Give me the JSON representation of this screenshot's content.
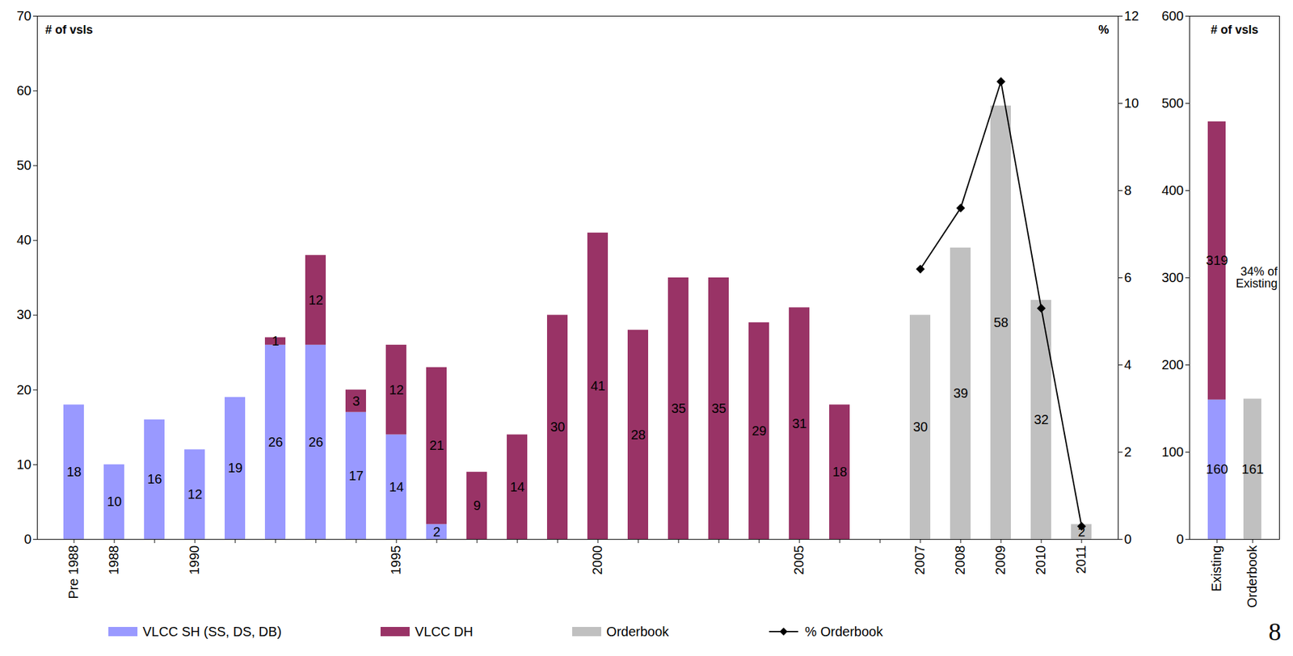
{
  "chart_data": [
    {
      "type": "bar",
      "stacked": true,
      "data_labels": true,
      "legend": "bottom",
      "y_label": "# of vsls",
      "y2_label": "%",
      "categories": [
        "Pre 1988",
        "1988",
        null,
        "1990",
        null,
        null,
        null,
        null,
        "1995",
        null,
        null,
        null,
        null,
        "2000",
        null,
        null,
        null,
        null,
        "2005",
        null,
        null,
        "2007",
        "2008",
        "2009",
        "2010",
        "2011"
      ],
      "series": [
        {
          "name": "VLCC SH (SS, DS, DB)",
          "color": "#9999ff",
          "values": [
            18,
            10,
            16,
            12,
            19,
            26,
            26,
            17,
            14,
            2,
            null,
            null,
            null,
            null,
            null,
            null,
            null,
            null,
            null,
            null,
            null,
            null,
            null,
            null,
            null,
            null
          ]
        },
        {
          "name": "VLCC DH",
          "color": "#993366",
          "values": [
            null,
            null,
            null,
            null,
            null,
            1,
            12,
            3,
            12,
            21,
            9,
            14,
            30,
            41,
            28,
            35,
            35,
            29,
            31,
            18,
            null,
            null,
            null,
            null,
            null,
            null
          ]
        },
        {
          "name": "Orderbook",
          "color": "#c0c0c0",
          "values": [
            null,
            null,
            null,
            null,
            null,
            null,
            null,
            null,
            null,
            null,
            null,
            null,
            null,
            null,
            null,
            null,
            null,
            null,
            null,
            null,
            null,
            30,
            39,
            58,
            32,
            2
          ]
        },
        {
          "name": "% Orderbook",
          "type": "line",
          "axis": "y2",
          "color": "#000000",
          "marker": "diamond",
          "data_labels": false,
          "values": [
            null,
            null,
            null,
            null,
            null,
            null,
            null,
            null,
            null,
            null,
            null,
            null,
            null,
            null,
            null,
            null,
            null,
            null,
            null,
            null,
            null,
            6.2,
            7.6,
            10.5,
            5.3,
            0.3
          ]
        }
      ],
      "ylim": [
        0,
        70
      ],
      "yticks": [
        0,
        10,
        20,
        30,
        40,
        50,
        60,
        70
      ],
      "y2lim": [
        0,
        12
      ],
      "y2ticks": [
        0,
        2,
        4,
        6,
        8,
        10,
        12
      ]
    },
    {
      "type": "bar",
      "stacked": true,
      "data_labels": true,
      "y_label": "# of vsls",
      "categories": [
        "Existing",
        "Orderbook"
      ],
      "series": [
        {
          "name": "VLCC SH (SS, DS, DB)",
          "color": "#9999ff",
          "values": [
            160,
            null
          ]
        },
        {
          "name": "VLCC DH",
          "color": "#993366",
          "values": [
            319,
            null
          ]
        },
        {
          "name": "Orderbook",
          "color": "#c0c0c0",
          "values": [
            null,
            161
          ]
        }
      ],
      "ylim": [
        0,
        600
      ],
      "yticks": [
        0,
        100,
        200,
        300,
        400,
        500,
        600
      ],
      "annotations": [
        "34% of Existing"
      ]
    }
  ],
  "page_number": 8
}
